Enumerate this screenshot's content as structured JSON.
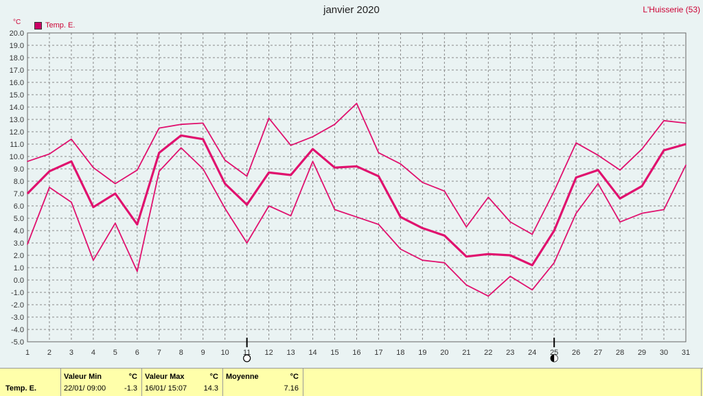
{
  "title": "janvier 2020",
  "station": "L'Huisserie (53)",
  "legend_label": "Temp. E.",
  "unit": "°C",
  "colors": {
    "series": "#e0116e",
    "grid": "#888888",
    "background": "#eaf3f3",
    "footer": "#ffffaa"
  },
  "chart_data": {
    "type": "line",
    "x": [
      1,
      2,
      3,
      4,
      5,
      6,
      7,
      8,
      9,
      10,
      11,
      12,
      13,
      14,
      15,
      16,
      17,
      18,
      19,
      20,
      21,
      22,
      23,
      24,
      25,
      26,
      27,
      28,
      29,
      30,
      31
    ],
    "ylim": [
      -5.0,
      20.0
    ],
    "y_ticks": [
      "-5.0",
      "-4.0",
      "-3.0",
      "-2.0",
      "-1.0",
      "0.0",
      "1.0",
      "2.0",
      "3.0",
      "4.0",
      "5.0",
      "6.0",
      "7.0",
      "8.0",
      "9.0",
      "10.0",
      "11.0",
      "12.0",
      "13.0",
      "14.0",
      "15.0",
      "16.0",
      "17.0",
      "18.0",
      "19.0",
      "20.0"
    ],
    "x_ticks": [
      "1",
      "2",
      "3",
      "4",
      "5",
      "6",
      "7",
      "8",
      "9",
      "10",
      "11",
      "12",
      "13",
      "14",
      "15",
      "16",
      "17",
      "18",
      "19",
      "20",
      "21",
      "22",
      "23",
      "24",
      "25",
      "26",
      "27",
      "28",
      "29",
      "30",
      "31"
    ],
    "grid": true,
    "legend_position": "top-left",
    "series": [
      {
        "name": "Temp. E.",
        "role": "max",
        "values": [
          9.6,
          10.2,
          11.4,
          9.1,
          7.8,
          8.9,
          12.3,
          12.6,
          12.7,
          9.7,
          8.4,
          13.1,
          10.9,
          11.6,
          12.6,
          14.3,
          10.3,
          9.4,
          7.9,
          7.2,
          4.3,
          6.7,
          4.7,
          3.7,
          7.2,
          11.1,
          10.1,
          8.9,
          10.6,
          12.9,
          12.7
        ]
      },
      {
        "name": "Temp. E.",
        "role": "mean",
        "values": [
          7.0,
          8.8,
          9.6,
          5.9,
          7.0,
          4.5,
          10.3,
          11.7,
          11.4,
          7.8,
          6.1,
          8.7,
          8.5,
          10.6,
          9.1,
          9.2,
          8.4,
          5.1,
          4.2,
          3.6,
          1.9,
          2.1,
          2.0,
          1.2,
          4.0,
          8.3,
          8.9,
          6.6,
          7.6,
          10.5,
          11.0
        ]
      },
      {
        "name": "Temp. E.",
        "role": "min",
        "values": [
          2.9,
          7.5,
          6.3,
          1.6,
          4.6,
          0.7,
          8.8,
          10.7,
          9.0,
          5.8,
          3.0,
          6.0,
          5.2,
          9.6,
          5.7,
          5.1,
          4.5,
          2.5,
          1.6,
          1.4,
          -0.4,
          -1.3,
          0.3,
          -0.8,
          1.4,
          5.4,
          7.8,
          4.7,
          5.4,
          5.7,
          9.3
        ]
      }
    ],
    "moon_markers": [
      {
        "day": 11,
        "phase": "full-moon"
      },
      {
        "day": 25,
        "phase": "new-moon"
      }
    ]
  },
  "footer": {
    "series_label": "Temp. E.",
    "min_header": "Valeur Min",
    "min_unit": "°C",
    "min_date": "22/01/  09:00",
    "min_value": "-1.3",
    "max_header": "Valeur Max",
    "max_unit": "°C",
    "max_date": "16/01/  15:07",
    "max_value": "14.3",
    "avg_header": "Moyenne",
    "avg_unit": "°C",
    "avg_value": "7.16"
  }
}
